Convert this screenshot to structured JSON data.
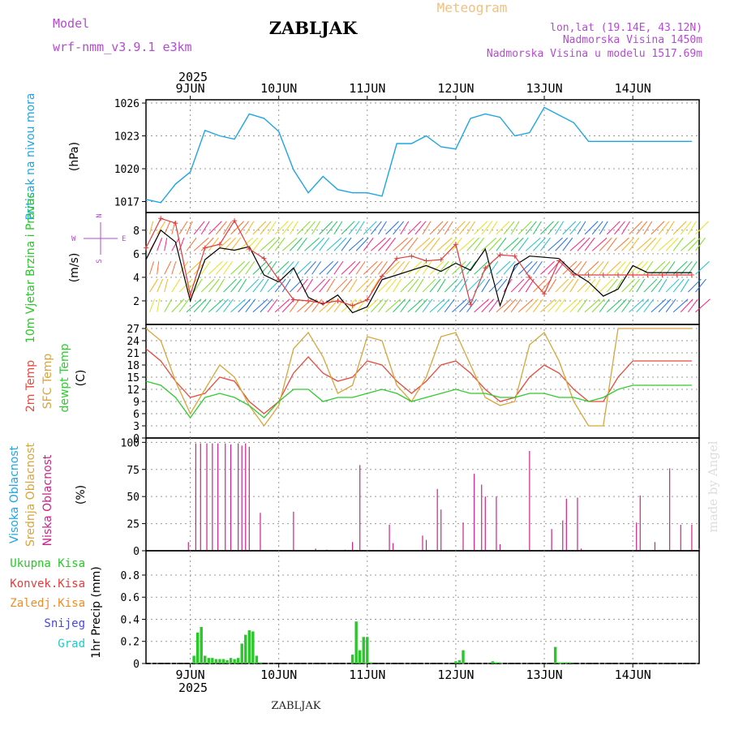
{
  "header": {
    "model_label": "Model",
    "model_name": "wrf-nmm_v3.9.1 e3km",
    "station": "ZABLJAK",
    "product": "Meteogram",
    "coords": "lon,lat (19.14E, 43.12N)",
    "elevation": "Nadmorska Visina 1450m",
    "model_elevation": "Nadmorska Visina u modelu 1517.69m",
    "footer_station": "ZABLJAK",
    "watermark": "made by Angel"
  },
  "colors": {
    "pressure": "#1ea5e6",
    "rain": "#28c828",
    "conv": "#e63c3c",
    "frozen": "#f08c28",
    "snow": "#4646e6",
    "hail": "#23c8c8",
    "temp2m": "#e84a3c",
    "sfc": "#d9a53a",
    "dew": "#2ecc2e",
    "high": "#2baee6",
    "mid": "#d9a53a",
    "low": "#cc2288",
    "speed": "#000000",
    "gust": "#e03c3c",
    "model_purple": "#b44bd2"
  },
  "chart_data": [
    {
      "type": "line",
      "panel": "pressure",
      "title": "Pritisak na nivou mora",
      "ylabel": "(hPa)",
      "ylim": [
        1016,
        1026.3
      ],
      "yticks": [
        1017,
        1020,
        1023,
        1026
      ],
      "x_unit": "hours from 9 Jun 2025 00 UTC",
      "x": [
        -12,
        -8,
        -4,
        0,
        4,
        8,
        12,
        16,
        20,
        24,
        28,
        32,
        36,
        40,
        44,
        48,
        52,
        56,
        60,
        64,
        68,
        72,
        76,
        80,
        84,
        88,
        92,
        96,
        100,
        104,
        108,
        112,
        116,
        120,
        124,
        128,
        132,
        136
      ],
      "series": [
        {
          "name": "MSLP",
          "values": [
            1017.2,
            1016.9,
            1018.6,
            1019.7,
            1023.5,
            1023.0,
            1022.7,
            1025.0,
            1024.6,
            1023.4,
            1019.9,
            1017.8,
            1019.3,
            1018.1,
            1017.8,
            1017.8,
            1017.5,
            1022.3,
            1022.3,
            1023.0,
            1022.0,
            1021.8,
            1024.6,
            1025.0,
            1024.7,
            1023.0,
            1023.3,
            1025.6,
            1024.9,
            1024.2,
            1022.5,
            1022.5,
            1022.5,
            1022.5,
            1022.5,
            1022.5,
            1022.5,
            1022.5
          ]
        }
      ]
    },
    {
      "type": "line",
      "panel": "wind",
      "title": "10m Vjetar Brzina i Pravac",
      "ylabel": "(m/s)",
      "ylim": [
        0,
        9.5
      ],
      "yticks": [
        2,
        4,
        6,
        8
      ],
      "compass": {
        "n": "N",
        "s": "S",
        "e": "E",
        "w": "W"
      },
      "x": [
        -12,
        -8,
        -4,
        0,
        4,
        8,
        12,
        16,
        20,
        24,
        28,
        32,
        36,
        40,
        44,
        48,
        52,
        56,
        60,
        64,
        68,
        72,
        76,
        80,
        84,
        88,
        92,
        96,
        100,
        104,
        108,
        112,
        116,
        120,
        124,
        128,
        132,
        136
      ],
      "series": [
        {
          "name": "speed",
          "values": [
            5.5,
            8.0,
            7.0,
            2.0,
            5.5,
            6.5,
            6.3,
            6.6,
            4.2,
            3.6,
            4.8,
            2.3,
            1.7,
            2.5,
            1.0,
            1.5,
            3.8,
            4.2,
            4.6,
            5.0,
            4.5,
            5.2,
            4.6,
            6.4,
            1.6,
            5.0,
            5.8,
            5.7,
            5.6,
            4.4,
            3.6,
            2.4,
            3.0,
            5.0,
            4.4,
            4.4,
            4.4,
            4.4
          ]
        },
        {
          "name": "gust",
          "values": [
            6.5,
            9.0,
            8.6,
            2.5,
            6.5,
            6.8,
            8.8,
            6.4,
            5.6,
            3.8,
            2.1,
            2.0,
            1.8,
            2.0,
            1.6,
            2.1,
            4.1,
            5.6,
            5.8,
            5.4,
            5.5,
            6.8,
            1.7,
            4.8,
            5.9,
            5.8,
            4.0,
            2.6,
            5.4,
            4.2,
            4.2,
            4.2,
            4.2,
            4.2,
            4.2,
            4.2,
            4.2,
            4.2
          ]
        }
      ]
    },
    {
      "type": "line",
      "panel": "temperature",
      "labels": [
        "2m Temp",
        "SFC Temp",
        "dewpt Temp"
      ],
      "ylabel": "(C)",
      "ylim": [
        0,
        28
      ],
      "yticks": [
        0,
        3,
        6,
        9,
        12,
        15,
        18,
        21,
        24,
        27
      ],
      "x": [
        -12,
        -8,
        -4,
        0,
        4,
        8,
        12,
        16,
        20,
        24,
        28,
        32,
        36,
        40,
        44,
        48,
        52,
        56,
        60,
        64,
        68,
        72,
        76,
        80,
        84,
        88,
        92,
        96,
        100,
        104,
        108,
        112,
        116,
        120,
        124,
        128,
        132,
        136
      ],
      "series": [
        {
          "name": "2m Temp",
          "values": [
            22,
            19,
            14,
            10,
            11,
            15,
            14,
            9,
            6,
            9,
            16,
            20,
            16,
            14,
            15,
            19,
            18,
            14,
            11,
            14,
            18,
            19,
            16,
            12,
            9,
            10,
            15,
            18,
            16,
            12,
            9,
            9,
            15,
            19,
            19,
            19,
            19,
            19
          ]
        },
        {
          "name": "SFC Temp",
          "values": [
            27,
            24,
            14,
            6,
            12,
            18,
            15,
            8,
            3,
            8,
            22,
            26,
            20,
            11,
            13,
            25,
            24,
            13,
            9,
            15,
            25,
            26,
            18,
            10,
            8,
            9,
            23,
            26,
            19,
            9,
            3,
            3,
            27,
            27,
            27,
            27,
            27,
            27
          ]
        },
        {
          "name": "dewpt Temp",
          "values": [
            14,
            13,
            10,
            5,
            10,
            11,
            10,
            8,
            5,
            9,
            12,
            12,
            9,
            10,
            10,
            11,
            12,
            11,
            9,
            10,
            11,
            12,
            11,
            11,
            10,
            10,
            11,
            11,
            10,
            10,
            9,
            10,
            12,
            13,
            13,
            13,
            13,
            13
          ]
        }
      ]
    },
    {
      "type": "bar",
      "panel": "clouds",
      "labels": [
        "Visoka Oblacnost",
        "Srednja Oblacnost",
        "Niska Oblacnost"
      ],
      "ylabel": "(%)",
      "ylim": [
        0,
        104
      ],
      "yticks": [
        0,
        25,
        50,
        75,
        100
      ],
      "x": [
        -0.5,
        1.5,
        2.8,
        4.5,
        6,
        7.5,
        9.5,
        11,
        13,
        14,
        15,
        16,
        19,
        28,
        34,
        37,
        42,
        44,
        46,
        54,
        55,
        63,
        64,
        67,
        68,
        74,
        77,
        79,
        80,
        83,
        84,
        92,
        98,
        101,
        102,
        105,
        106,
        121,
        122,
        126,
        130,
        133,
        136,
        138
      ],
      "series": [
        {
          "name": "Niska Oblacnost",
          "values": [
            8,
            99,
            99,
            99,
            99,
            99,
            99,
            98,
            99,
            97,
            99,
            96,
            35,
            36,
            2,
            1,
            1,
            8,
            79,
            24,
            7,
            14,
            10,
            57,
            38,
            26,
            71,
            61,
            50,
            50,
            6,
            92,
            20,
            28,
            48,
            49,
            2,
            26,
            51,
            8,
            76,
            24,
            24,
            2
          ]
        }
      ]
    },
    {
      "type": "bar",
      "panel": "precip",
      "labels": [
        "Ukupna Kisa",
        "Konvek.Kisa",
        "Zaledj.Kisa",
        "Snijeg",
        "Grad"
      ],
      "ylabel": "1hr Precip (mm)",
      "ylim": [
        0,
        1.02
      ],
      "yticks": [
        0,
        0.2,
        0.4,
        0.6,
        0.8
      ],
      "x": [
        1,
        2,
        3,
        4,
        5,
        6,
        7,
        8,
        9,
        10,
        11,
        12,
        13,
        14,
        15,
        16,
        17,
        18,
        19,
        44,
        45,
        46,
        47,
        48,
        49,
        72,
        73,
        74,
        82,
        83,
        84,
        99,
        100,
        101,
        102,
        103
      ],
      "series": [
        {
          "name": "Ukupna Kisa",
          "values": [
            0.07,
            0.28,
            0.33,
            0.07,
            0.05,
            0.05,
            0.04,
            0.04,
            0.04,
            0.03,
            0.05,
            0.04,
            0.05,
            0.18,
            0.26,
            0.3,
            0.29,
            0.07,
            0.01,
            0.08,
            0.38,
            0.12,
            0.24,
            0.24,
            0.01,
            0.02,
            0.03,
            0.12,
            0.02,
            0.01,
            0.01,
            0.15,
            0.01,
            0.01,
            0.01,
            0.01
          ]
        }
      ]
    }
  ],
  "axes": {
    "date_ticks_x": [
      0,
      24,
      48,
      72,
      96,
      120
    ],
    "date_ticks_top": [
      "9JUN",
      "10JUN",
      "11JUN",
      "12JUN",
      "13JUN",
      "14JUN"
    ],
    "date_ticks_bottom": [
      "9JUN",
      "10JUN",
      "11JUN",
      "12JUN",
      "13JUN",
      "14JUN"
    ],
    "year_top": "2025",
    "year_bottom": "2025",
    "x_range": [
      -12,
      138
    ]
  }
}
